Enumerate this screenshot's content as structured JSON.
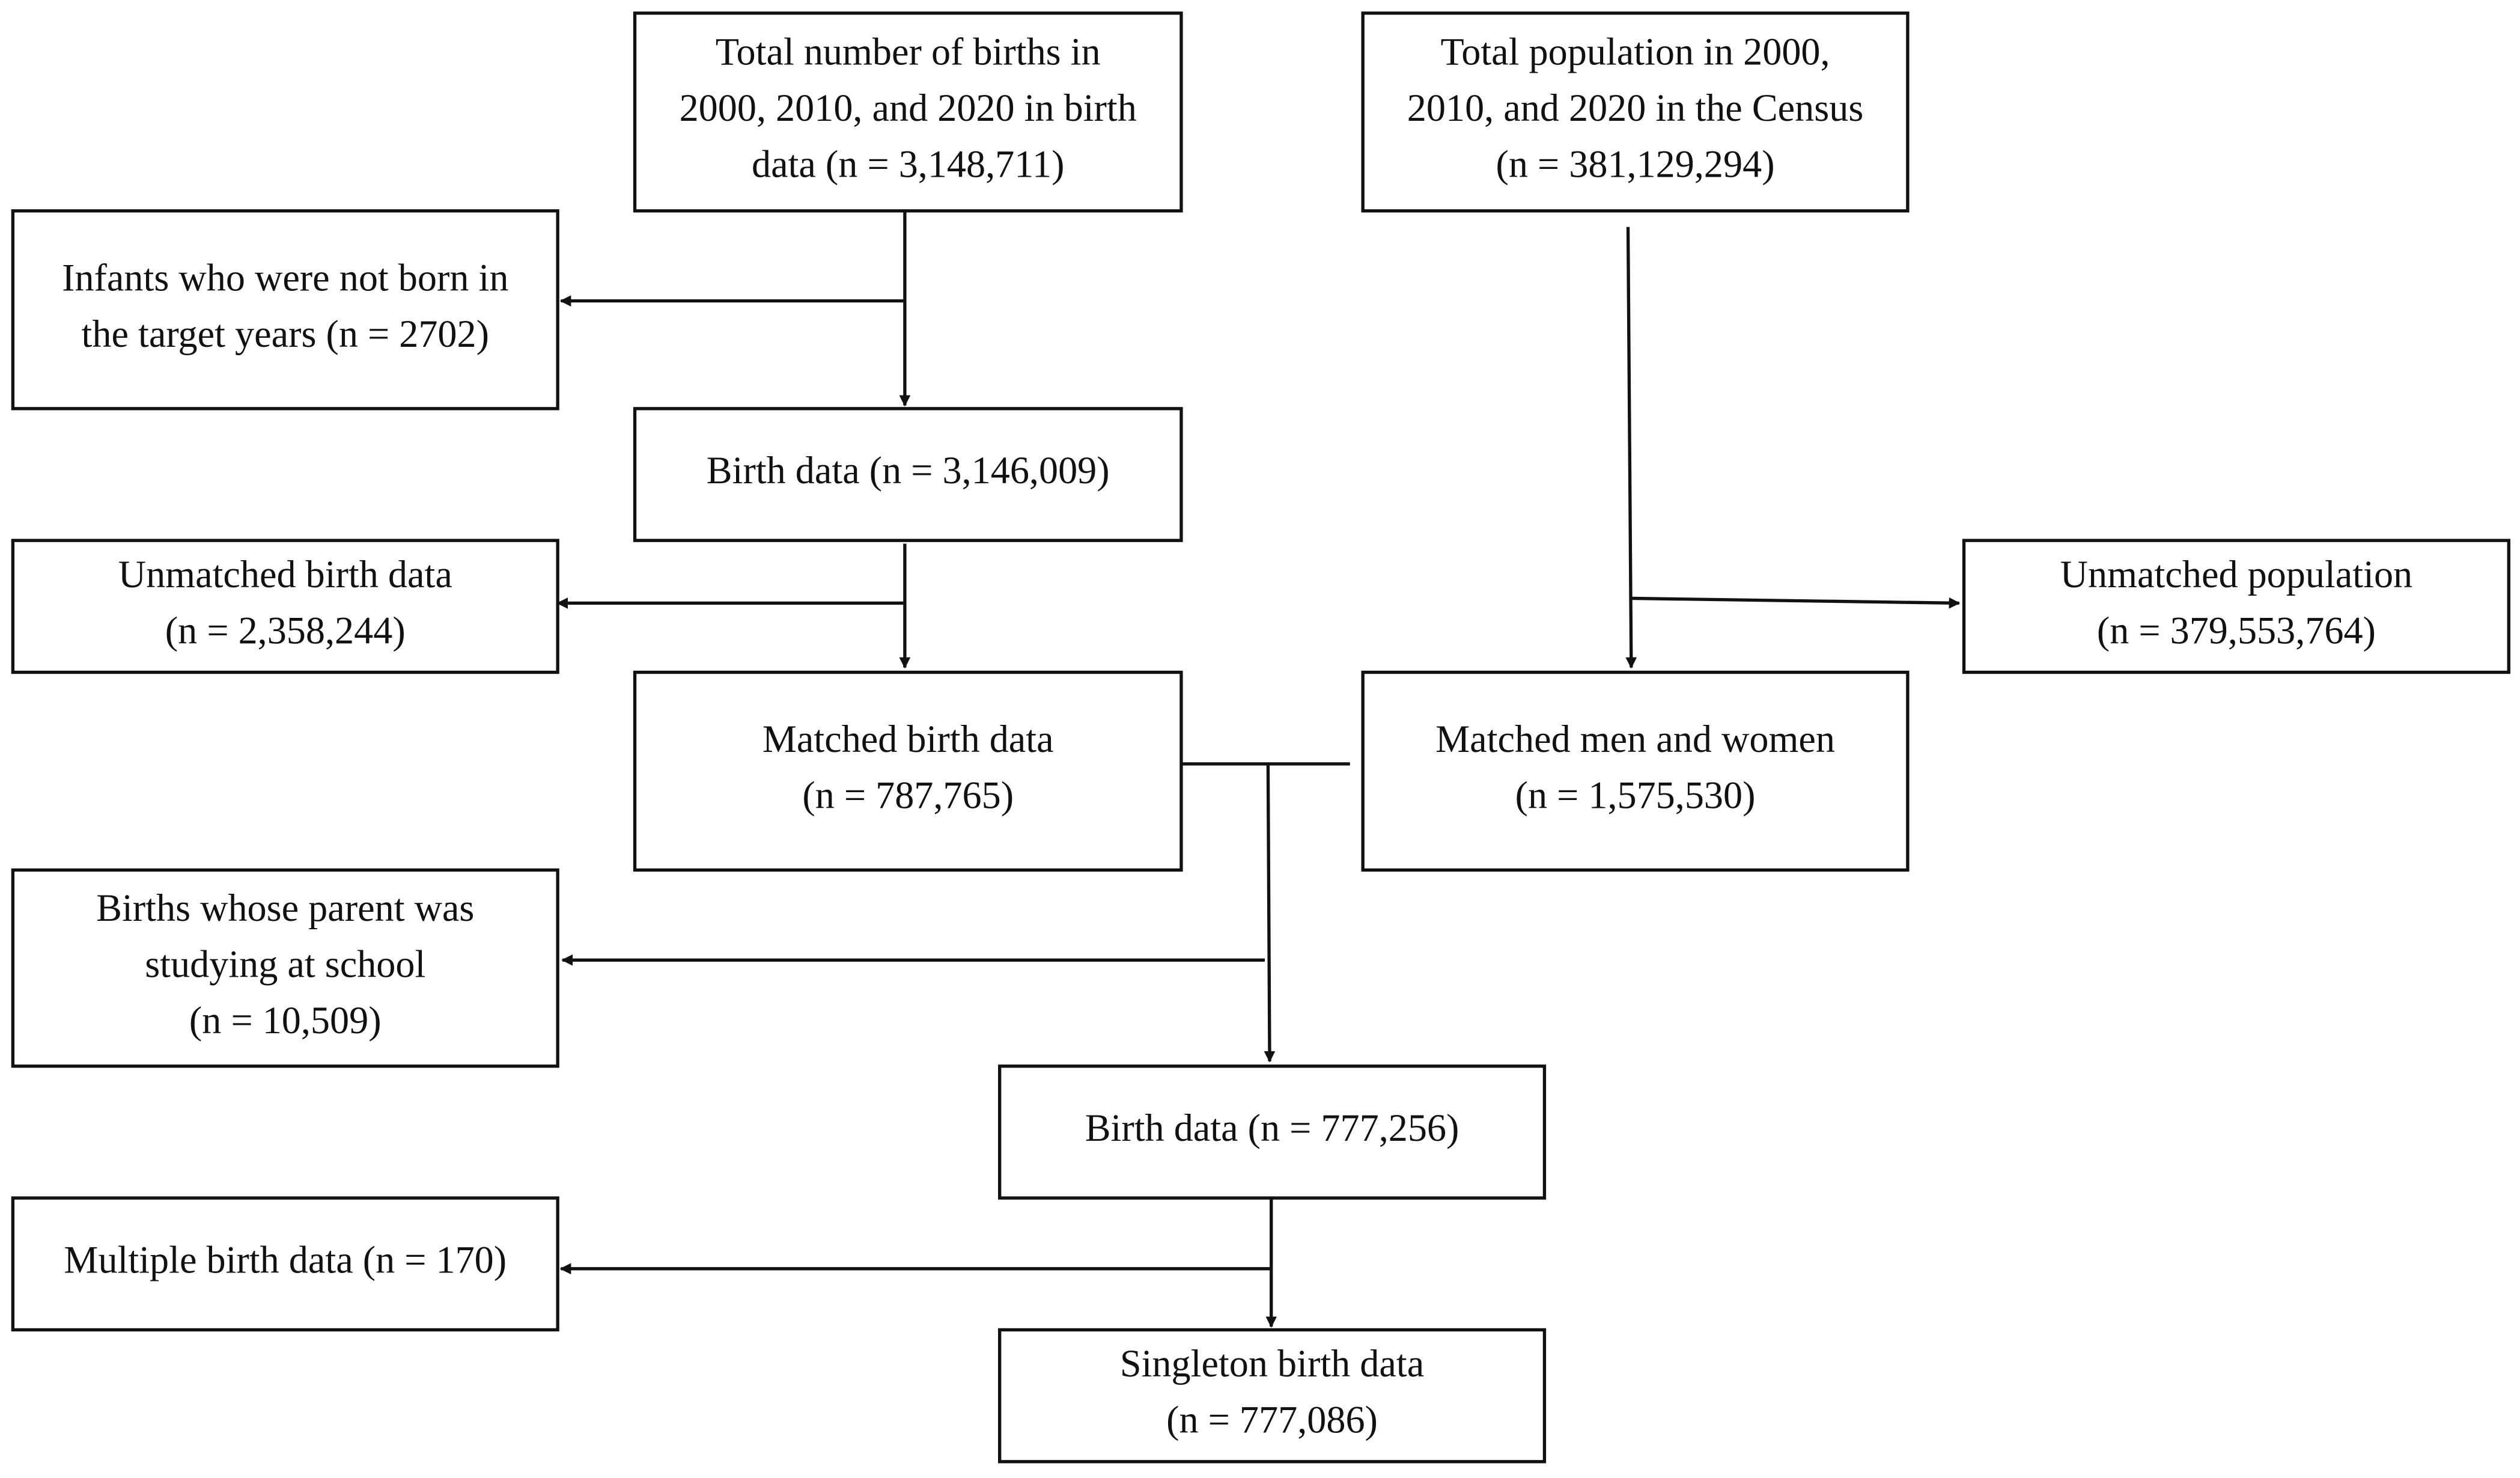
{
  "nodes": [
    {
      "lines": [
        "Total number of births in",
        "2000, 2010, and 2020 in birth",
        "data (n = 3,148,711)"
      ]
    },
    {
      "lines": [
        "Total population in 2000,",
        "2010, and 2020 in the Census",
        "(n = 381,129,294)"
      ]
    },
    {
      "lines": [
        "Infants who were not born in",
        "the target years  (n = 2702)"
      ]
    },
    {
      "lines": [
        "Birth data (n = 3,146,009)"
      ]
    },
    {
      "lines": [
        "Unmatched birth data",
        "(n = 2,358,244)"
      ]
    },
    {
      "lines": [
        "Unmatched population",
        "(n = 379,553,764)"
      ]
    },
    {
      "lines": [
        "Matched birth data",
        "(n = 787,765)"
      ]
    },
    {
      "lines": [
        "Matched men and women",
        "(n = 1,575,530)"
      ]
    },
    {
      "lines": [
        "Births whose parent was",
        "studying at school",
        "(n = 10,509)"
      ]
    },
    {
      "lines": [
        "Birth data (n = 777,256)"
      ]
    },
    {
      "lines": [
        "Multiple birth data  (n = 170)"
      ]
    },
    {
      "lines": [
        "Singleton birth data",
        "(n = 777,086)"
      ]
    }
  ]
}
